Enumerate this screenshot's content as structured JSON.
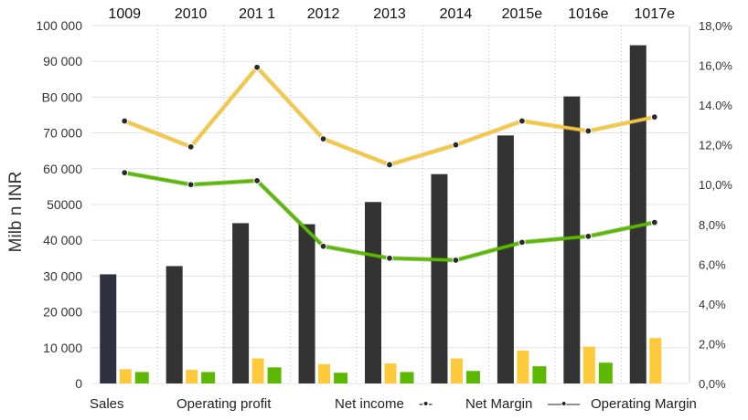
{
  "chart_data": {
    "type": "bar",
    "categories": [
      "1009",
      "2010",
      "201 1",
      "2012",
      "2013",
      "2014",
      "2015e",
      "1016e",
      "1017e"
    ],
    "ylabel": "Milb n  INR",
    "y_ticks": [
      "0",
      "10 000",
      "20 000",
      "30 000",
      "40 000",
      "50000",
      "60 000",
      "70 000",
      "B0 000",
      "90 000",
      "100 000"
    ],
    "ylim": [
      0,
      100000
    ],
    "y2_ticks": [
      "0,0%",
      "2,0%",
      "4,0%",
      "6,0%",
      "8,0%",
      "10,0%",
      "12,0%",
      "14.0%",
      "16,0%",
      "18,0%"
    ],
    "y2lim": [
      0,
      18
    ],
    "legend_position": "bottom",
    "grid": true,
    "series": [
      {
        "name": "Sales",
        "type": "bar",
        "axis": "left",
        "color": "#333333",
        "values": [
          30500,
          32800,
          44800,
          44500,
          50700,
          58500,
          69300,
          80200,
          94500
        ]
      },
      {
        "name": "Operating profit",
        "type": "bar",
        "axis": "left",
        "color": "#ffc93c",
        "values": [
          4000,
          3800,
          7000,
          5400,
          5600,
          7000,
          9200,
          10300,
          12700
        ]
      },
      {
        "name": "Net income",
        "type": "bar",
        "axis": "left",
        "color": "#5cb800",
        "values": [
          3200,
          3200,
          4500,
          3000,
          3200,
          3500,
          4800,
          5800,
          0
        ]
      },
      {
        "name": "Net Margin",
        "type": "line",
        "axis": "right",
        "color": "#5cb800",
        "values": [
          10.6,
          10.0,
          10.2,
          6.9,
          6.3,
          6.2,
          7.1,
          7.4,
          8.1
        ]
      },
      {
        "name": "Operating Margin",
        "type": "line",
        "axis": "right",
        "color": "#f5c842",
        "values": [
          13.2,
          11.9,
          15.9,
          12.3,
          11.0,
          12.0,
          13.2,
          12.7,
          13.4
        ]
      }
    ],
    "legend": {
      "sales": "Sales",
      "operating_profit": "Operating profit",
      "net_income": "Net income",
      "net_income_marker": "-•-",
      "net_margin": "Net Margin",
      "net_margin_marker": "—•—",
      "operating_margin": "Operating Margin"
    }
  }
}
